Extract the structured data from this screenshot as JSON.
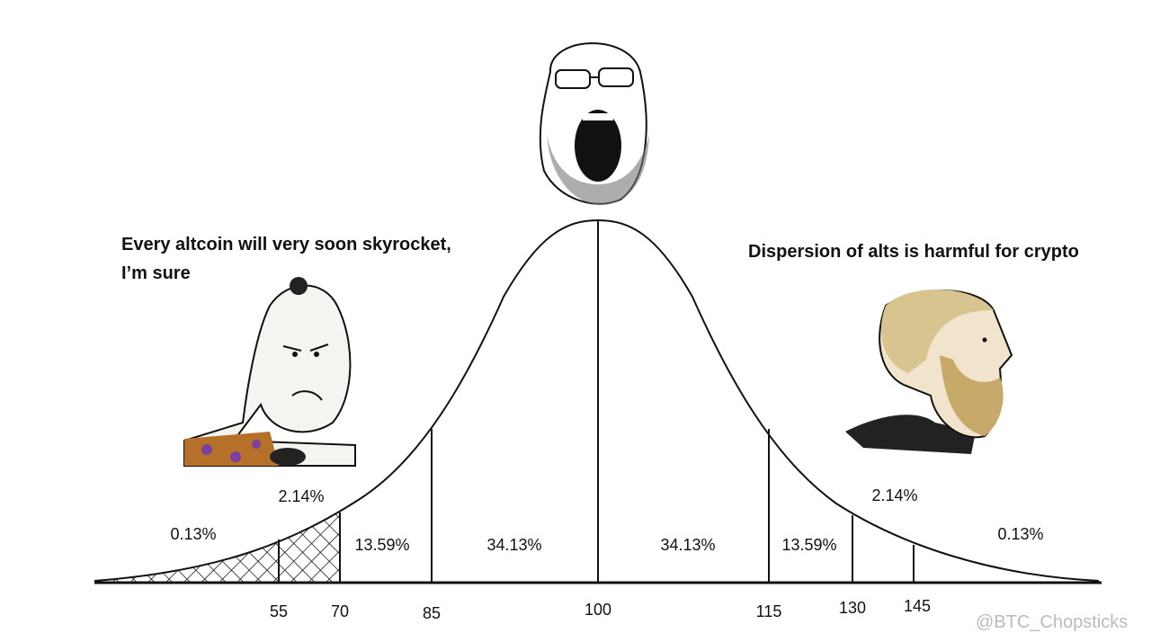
{
  "captions": {
    "left": [
      "Every altcoin will very soon skyrocket,",
      "I’m sure"
    ],
    "right": "Dispersion of alts is harmful for crypto"
  },
  "regions": [
    "0.13%",
    "2.14%",
    "13.59%",
    "34.13%",
    "34.13%",
    "13.59%",
    "2.14%",
    "0.13%"
  ],
  "axis_labels": [
    "55",
    "70",
    "85",
    "100",
    "115",
    "130",
    "145"
  ],
  "watermark": "@BTC_Chopsticks"
}
